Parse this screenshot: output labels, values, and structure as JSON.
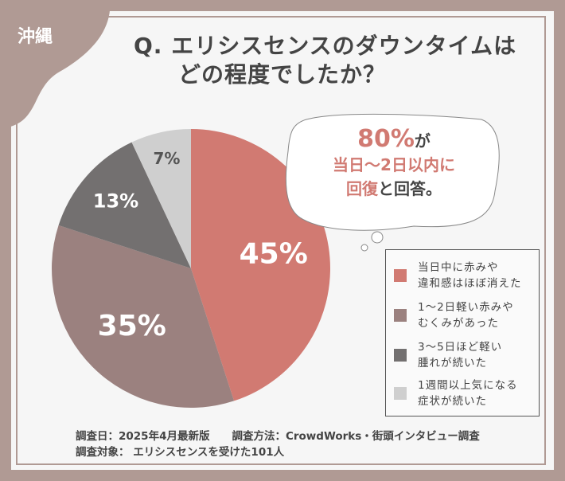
{
  "region": "沖縄",
  "title": {
    "line1": "Q. エリシスセンスのダウンタイムは",
    "line2": "どの程度でしたか？"
  },
  "callout": {
    "pct": "80%",
    "ga": "が",
    "line2": "当日〜2日以内に",
    "line3_red": "回復",
    "line3_rest": "と回答。"
  },
  "chart_data": {
    "type": "pie",
    "start": "top",
    "direction": "clockwise",
    "categories": [
      "当日中に赤みや違和感はほぼ消えた",
      "1〜2日軽い赤みやむくみがあった",
      "3〜5日ほど軽い腫れが続いた",
      "1週間以上気になる症状が続いた"
    ],
    "values": [
      45,
      35,
      13,
      7
    ],
    "labels": [
      "45%",
      "35%",
      "13%",
      "7%"
    ],
    "colors": [
      "#d17a72",
      "#9b817f",
      "#737070",
      "#cfcfcf"
    ],
    "legend_position": "right"
  },
  "legend": [
    {
      "line1": "当日中に赤みや",
      "line2": "違和感はほぼ消えた"
    },
    {
      "line1": "1〜2日軽い赤みや",
      "line2": "むくみがあった"
    },
    {
      "line1": "3〜5日ほど軽い",
      "line2": "腫れが続いた"
    },
    {
      "line1": "1週間以上気になる",
      "line2": "症状が続いた"
    }
  ],
  "footer": {
    "date": "調査日：2025年4月最新版",
    "method": "調査方法：CrowdWorks・街頭インタビュー調査",
    "target": "調査対象： エリシスセンスを受けた101人"
  }
}
